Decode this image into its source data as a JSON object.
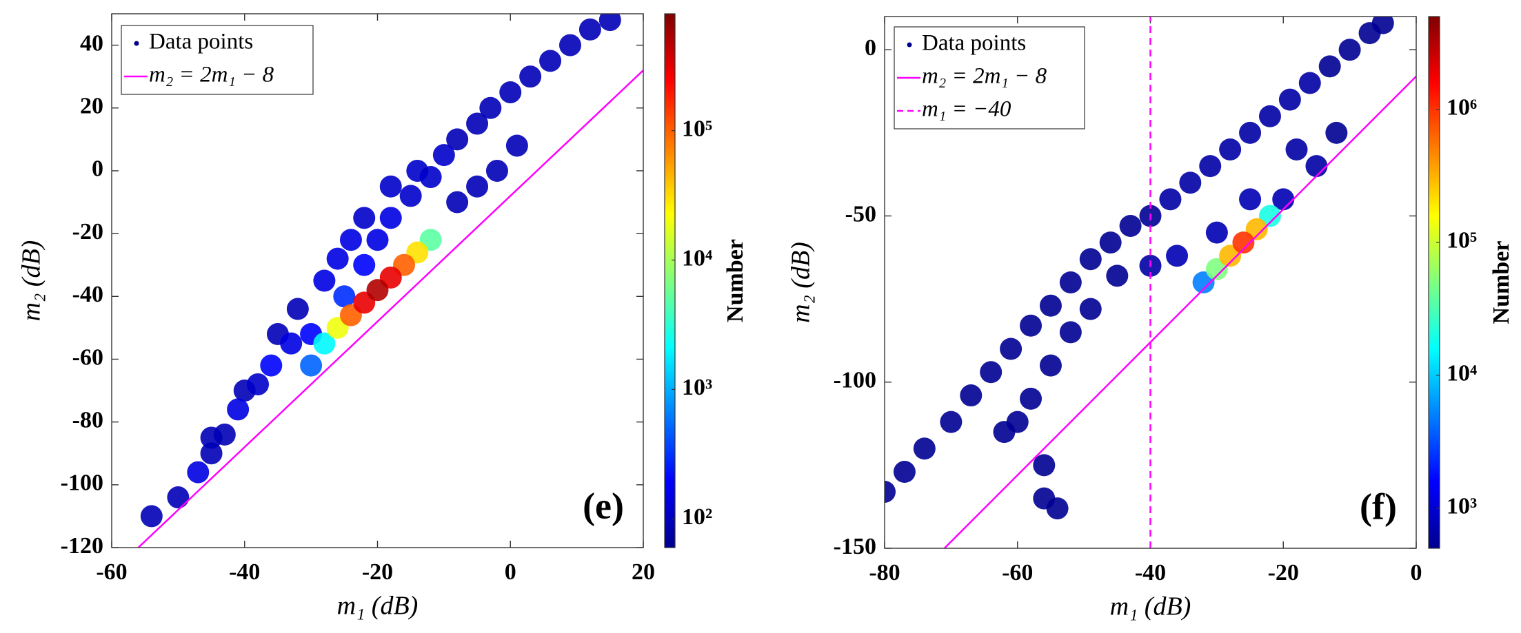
{
  "chart_data": [
    {
      "type": "scatter",
      "panel_label": "(e)",
      "xlabel": "m₁ (dB)",
      "ylabel": "m₂ (dB)",
      "xlim": [
        -60,
        20
      ],
      "ylim": [
        -120,
        50
      ],
      "xticks": [
        -60,
        -40,
        -20,
        0,
        20
      ],
      "yticks": [
        -120,
        -100,
        -80,
        -60,
        -40,
        -20,
        0,
        20,
        40
      ],
      "legend": "upper left",
      "series": [
        {
          "name": "Data points",
          "color": "#00008b",
          "x": [
            -54,
            -50,
            -47,
            -45,
            -43,
            -45,
            -41,
            -40,
            -38,
            -36,
            -35,
            -33,
            -32,
            -30,
            -25,
            -22,
            -20,
            -18,
            -15,
            -12,
            -10,
            -8,
            -5,
            -3,
            0,
            3,
            6,
            9,
            12,
            15,
            -8,
            -5,
            -2,
            1,
            -28,
            -26,
            -24,
            -22,
            -18,
            -14,
            -30,
            -28,
            -26,
            -24,
            -22,
            -20,
            -18,
            -16,
            -14,
            -12
          ],
          "y": [
            -110,
            -104,
            -96,
            -90,
            -84,
            -85,
            -76,
            -70,
            -68,
            -62,
            -52,
            -55,
            -44,
            -52,
            -40,
            -30,
            -22,
            -15,
            -8,
            -2,
            5,
            10,
            15,
            20,
            25,
            30,
            35,
            40,
            45,
            48,
            -10,
            -5,
            0,
            8,
            -35,
            -28,
            -22,
            -15,
            -5,
            0,
            -62,
            -55,
            -50,
            -46,
            -42,
            -38,
            -34,
            -30,
            -26,
            -22
          ],
          "z": [
            100,
            100,
            150,
            100,
            100,
            100,
            150,
            100,
            120,
            200,
            100,
            150,
            100,
            200,
            300,
            200,
            150,
            150,
            120,
            120,
            120,
            100,
            100,
            100,
            100,
            100,
            100,
            100,
            100,
            100,
            100,
            100,
            100,
            100,
            150,
            150,
            150,
            120,
            120,
            120,
            500,
            2000,
            20000,
            100000,
            300000,
            500000,
            300000,
            100000,
            30000,
            5000
          ]
        }
      ],
      "lines": [
        {
          "name": "m₂ = 2m₁ − 8",
          "color": "#ff00ff",
          "dash": false,
          "x": [
            -56,
            20
          ],
          "y": [
            -120,
            32
          ]
        }
      ],
      "colorbar": {
        "label": "Number",
        "log": true,
        "clim": [
          60,
          800000
        ],
        "ticks": [
          {
            "value": 100,
            "label": "10²"
          },
          {
            "value": 1000,
            "label": "10³"
          },
          {
            "value": 10000,
            "label": "10⁴"
          },
          {
            "value": 100000,
            "label": "10⁵"
          }
        ]
      }
    },
    {
      "type": "scatter",
      "panel_label": "(f)",
      "xlabel": "m₁ (dB)",
      "ylabel": "m₂ (dB)",
      "xlim": [
        -80,
        0
      ],
      "ylim": [
        -150,
        10
      ],
      "xticks": [
        -80,
        -60,
        -40,
        -20,
        0
      ],
      "yticks": [
        -150,
        -100,
        -50,
        0
      ],
      "legend": "upper left",
      "series": [
        {
          "name": "Data points",
          "color": "#00008b",
          "x": [
            -80,
            -77,
            -74,
            -70,
            -67,
            -64,
            -61,
            -58,
            -55,
            -52,
            -49,
            -46,
            -43,
            -40,
            -37,
            -34,
            -31,
            -28,
            -25,
            -22,
            -19,
            -16,
            -13,
            -10,
            -7,
            -5,
            -62,
            -58,
            -55,
            -52,
            -49,
            -56,
            -56,
            -54,
            -60,
            -45,
            -40,
            -36,
            -30,
            -25,
            -20,
            -15,
            -12,
            -18,
            -32,
            -30,
            -28,
            -26,
            -24,
            -22
          ],
          "y": [
            -133,
            -127,
            -120,
            -112,
            -104,
            -97,
            -90,
            -83,
            -77,
            -70,
            -63,
            -58,
            -53,
            -50,
            -45,
            -40,
            -35,
            -30,
            -25,
            -20,
            -15,
            -10,
            -5,
            0,
            5,
            8,
            -115,
            -105,
            -95,
            -85,
            -78,
            -125,
            -135,
            -138,
            -112,
            -68,
            -65,
            -62,
            -55,
            -45,
            -45,
            -35,
            -25,
            -30,
            -70,
            -66,
            -62,
            -58,
            -54,
            -50
          ],
          "z": [
            600,
            600,
            600,
            600,
            600,
            600,
            600,
            600,
            600,
            600,
            600,
            600,
            600,
            600,
            700,
            700,
            700,
            700,
            700,
            700,
            700,
            700,
            600,
            600,
            600,
            600,
            600,
            600,
            600,
            600,
            600,
            600,
            600,
            600,
            600,
            600,
            700,
            800,
            800,
            800,
            800,
            700,
            600,
            700,
            5000,
            50000,
            300000,
            1000000,
            300000,
            20000
          ]
        }
      ],
      "lines": [
        {
          "name": "m₂ = 2m₁ − 8",
          "color": "#ff00ff",
          "dash": false,
          "x": [
            -71,
            0
          ],
          "y": [
            -150,
            -8
          ]
        },
        {
          "name": "m₁ = −40",
          "color": "#ff00ff",
          "dash": true,
          "x": [
            -40,
            -40
          ],
          "y": [
            -150,
            10
          ]
        }
      ],
      "colorbar": {
        "label": "Number",
        "log": true,
        "clim": [
          500,
          5000000
        ],
        "ticks": [
          {
            "value": 1000,
            "label": "10³"
          },
          {
            "value": 10000,
            "label": "10⁴"
          },
          {
            "value": 100000,
            "label": "10⁵"
          },
          {
            "value": 1000000,
            "label": "10⁶"
          }
        ]
      }
    }
  ]
}
